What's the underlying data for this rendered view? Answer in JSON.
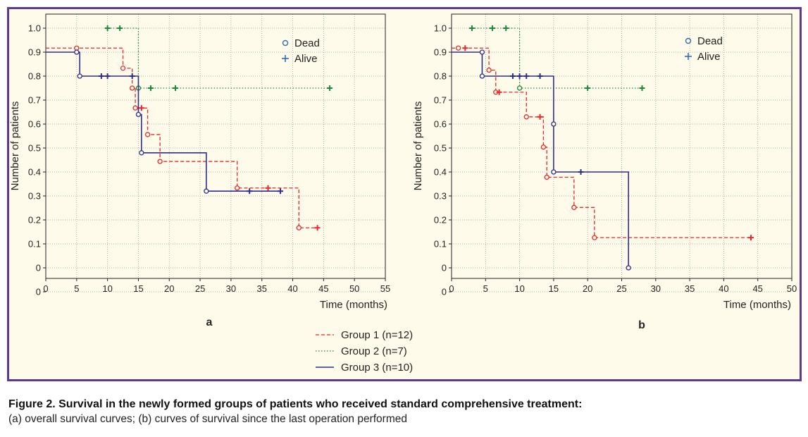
{
  "chart_data": [
    {
      "type": "line",
      "step": true,
      "panel_label": "a",
      "title": "",
      "xlabel": "Time (months)",
      "ylabel": "Number of patients",
      "xlim": [
        0,
        55
      ],
      "ylim": [
        0,
        1
      ],
      "xticks": [
        "0",
        "5",
        "10",
        "15",
        "20",
        "25",
        "30",
        "35",
        "40",
        "45",
        "50",
        "55"
      ],
      "yticks": [
        "0",
        "0",
        "0.1",
        "0.2",
        "0.3",
        "0.4",
        "0.5",
        "0.6",
        "0.7",
        "0.8",
        "0.9",
        "1.0"
      ],
      "grid": true,
      "marker_legend": {
        "position": "top-right",
        "entries": [
          {
            "symbol": "o",
            "label": "Dead"
          },
          {
            "symbol": "+",
            "label": "Alive"
          }
        ]
      },
      "series": [
        {
          "name": "Group 1 (n=12)",
          "color": "#e8262b",
          "style": "dashed",
          "steps": [
            [
              0,
              0.917
            ],
            [
              12.5,
              0.833
            ],
            [
              14,
              0.75
            ],
            [
              14.5,
              0.667
            ],
            [
              16.5,
              0.556
            ],
            [
              18.5,
              0.444
            ],
            [
              31,
              0.333
            ],
            [
              41,
              0.167
            ],
            [
              44,
              0.167
            ]
          ],
          "dead": [
            [
              5,
              0.917
            ],
            [
              12.5,
              0.833
            ],
            [
              14,
              0.75
            ],
            [
              14.5,
              0.667
            ],
            [
              16.5,
              0.556
            ],
            [
              18.5,
              0.444
            ],
            [
              31,
              0.333
            ],
            [
              41,
              0.167
            ]
          ],
          "alive": [
            [
              15.5,
              0.667
            ],
            [
              36,
              0.333
            ],
            [
              44,
              0.167
            ]
          ]
        },
        {
          "name": "Group 2 (n=7)",
          "color": "#1a8a3a",
          "style": "dotted",
          "steps": [
            [
              10,
              1.0
            ],
            [
              15,
              0.75
            ],
            [
              46,
              0.75
            ]
          ],
          "dead": [
            [
              15,
              0.75
            ]
          ],
          "alive": [
            [
              10,
              1.0
            ],
            [
              12,
              1.0
            ],
            [
              17,
              0.75
            ],
            [
              21,
              0.75
            ],
            [
              46,
              0.75
            ]
          ]
        },
        {
          "name": "Group 3 (n=10)",
          "color": "#2e2e8f",
          "style": "solid",
          "steps": [
            [
              0,
              0.9
            ],
            [
              5.5,
              0.8
            ],
            [
              15,
              0.64
            ],
            [
              15.5,
              0.48
            ],
            [
              26,
              0.32
            ],
            [
              38,
              0.32
            ]
          ],
          "dead": [
            [
              5,
              0.9
            ],
            [
              5.5,
              0.8
            ],
            [
              15,
              0.64
            ],
            [
              15.5,
              0.48
            ],
            [
              26,
              0.32
            ]
          ],
          "alive": [
            [
              9,
              0.8
            ],
            [
              10,
              0.8
            ],
            [
              14,
              0.8
            ],
            [
              33,
              0.32
            ],
            [
              38,
              0.32
            ]
          ]
        }
      ]
    },
    {
      "type": "line",
      "step": true,
      "panel_label": "b",
      "title": "",
      "xlabel": "Time (months)",
      "ylabel": "Number of patients",
      "xlim": [
        0,
        50
      ],
      "ylim": [
        0,
        1
      ],
      "xticks": [
        "0",
        "5",
        "10",
        "15",
        "20",
        "25",
        "30",
        "35",
        "40",
        "45",
        "50"
      ],
      "yticks": [
        "0",
        "0",
        "0.1",
        "0.2",
        "0.3",
        "0.4",
        "0.5",
        "0.6",
        "0.7",
        "0.8",
        "0.9",
        "1.0"
      ],
      "grid": true,
      "marker_legend": {
        "position": "top-right",
        "entries": [
          {
            "symbol": "o",
            "label": "Dead"
          },
          {
            "symbol": "+",
            "label": "Alive"
          }
        ]
      },
      "series": [
        {
          "name": "Group 1 (n=12)",
          "color": "#e8262b",
          "style": "dashed",
          "steps": [
            [
              0,
              0.917
            ],
            [
              5.5,
              0.825
            ],
            [
              6.5,
              0.733
            ],
            [
              11,
              0.63
            ],
            [
              13.5,
              0.504
            ],
            [
              14,
              0.378
            ],
            [
              18,
              0.252
            ],
            [
              21,
              0.126
            ],
            [
              44,
              0.126
            ]
          ],
          "dead": [
            [
              1,
              0.917
            ],
            [
              5.5,
              0.825
            ],
            [
              6.5,
              0.733
            ],
            [
              11,
              0.63
            ],
            [
              13.5,
              0.504
            ],
            [
              14,
              0.378
            ],
            [
              18,
              0.252
            ],
            [
              21,
              0.126
            ]
          ],
          "alive": [
            [
              2,
              0.917
            ],
            [
              7,
              0.733
            ],
            [
              13,
              0.63
            ],
            [
              44,
              0.126
            ]
          ]
        },
        {
          "name": "Group 2 (n=7)",
          "color": "#1a8a3a",
          "style": "dotted",
          "steps": [
            [
              3,
              1.0
            ],
            [
              10,
              0.75
            ],
            [
              28,
              0.75
            ]
          ],
          "dead": [
            [
              10,
              0.75
            ]
          ],
          "alive": [
            [
              3,
              1.0
            ],
            [
              6,
              1.0
            ],
            [
              8,
              1.0
            ],
            [
              20,
              0.75
            ],
            [
              28,
              0.75
            ]
          ]
        },
        {
          "name": "Group 3 (n=10)",
          "color": "#2e2e8f",
          "style": "solid",
          "steps": [
            [
              0,
              0.9
            ],
            [
              4.5,
              0.8
            ],
            [
              15,
              0.6
            ],
            [
              15,
              0.4
            ],
            [
              26,
              0.0
            ]
          ],
          "dead": [
            [
              4.5,
              0.9
            ],
            [
              4.5,
              0.8
            ],
            [
              15,
              0.6
            ],
            [
              15,
              0.4
            ],
            [
              26,
              0.0
            ]
          ],
          "alive": [
            [
              9,
              0.8
            ],
            [
              10,
              0.8
            ],
            [
              11,
              0.8
            ],
            [
              13,
              0.8
            ],
            [
              19,
              0.4
            ]
          ]
        }
      ]
    }
  ],
  "legend": {
    "items": [
      {
        "label": "Group 1 (n=12)",
        "color": "#e8262b",
        "style": "dashed"
      },
      {
        "label": "Group 2 (n=7)",
        "color": "#1a8a3a",
        "style": "dotted"
      },
      {
        "label": "Group 3 (n=10)",
        "color": "#2e2e8f",
        "style": "solid"
      }
    ]
  },
  "colors": {
    "frame": "#5e3a8c",
    "panel_bg": "#fffbea",
    "marker_legend": "#2e6fb5",
    "grid": "#9a9a9a"
  },
  "caption": {
    "title": "Figure 2. Survival in the newly formed groups of patients who received standard comprehensive treatment:",
    "text": "(a) overall survival curves; (b) curves of survival since the last operation performed"
  }
}
